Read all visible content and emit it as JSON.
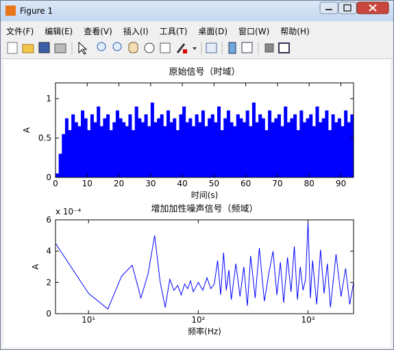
{
  "window": {
    "title": "Figure 1",
    "menu": [
      "文件(F)",
      "编辑(E)",
      "查看(V)",
      "插入(I)",
      "工具(T)",
      "桌面(D)",
      "窗口(W)",
      "帮助(H)"
    ]
  },
  "chart_data": [
    {
      "type": "bar",
      "title": "原始信号（时域）",
      "xlabel": "时间(s)",
      "ylabel": "A",
      "color": "#0000ff",
      "x": [
        0,
        1,
        2,
        3,
        4,
        5,
        6,
        7,
        8,
        9,
        10,
        11,
        12,
        13,
        14,
        15,
        16,
        17,
        18,
        19,
        20,
        21,
        22,
        23,
        24,
        25,
        26,
        27,
        28,
        29,
        30,
        31,
        32,
        33,
        34,
        35,
        36,
        37,
        38,
        39,
        40,
        41,
        42,
        43,
        44,
        45,
        46,
        47,
        48,
        49,
        50,
        51,
        52,
        53,
        54,
        55,
        56,
        57,
        58,
        59,
        60,
        61,
        62,
        63,
        64,
        65,
        66,
        67,
        68,
        69,
        70,
        71,
        72,
        73,
        74,
        75,
        76,
        77,
        78,
        79,
        80,
        81,
        82,
        83,
        84,
        85,
        86,
        87,
        88,
        89,
        90,
        91,
        92,
        93
      ],
      "values": [
        0.05,
        0.3,
        0.55,
        0.75,
        0.6,
        0.8,
        0.7,
        0.65,
        0.85,
        0.75,
        0.6,
        0.8,
        0.7,
        0.9,
        0.65,
        0.75,
        0.8,
        0.6,
        0.7,
        0.85,
        0.75,
        0.7,
        0.65,
        0.8,
        0.6,
        0.9,
        0.75,
        0.7,
        0.8,
        0.65,
        0.95,
        0.7,
        0.75,
        0.8,
        0.65,
        0.85,
        0.7,
        0.75,
        0.6,
        0.8,
        0.9,
        0.7,
        0.75,
        0.65,
        0.8,
        0.7,
        0.85,
        0.65,
        0.75,
        0.8,
        0.7,
        0.9,
        0.6,
        0.75,
        0.85,
        0.7,
        0.65,
        0.8,
        0.75,
        0.7,
        0.85,
        0.65,
        0.95,
        0.7,
        0.8,
        0.75,
        0.6,
        0.85,
        0.7,
        0.75,
        0.8,
        0.65,
        0.9,
        0.7,
        0.75,
        0.8,
        0.6,
        0.85,
        0.7,
        0.75,
        0.8,
        0.65,
        0.9,
        0.7,
        0.75,
        0.85,
        0.6,
        0.8,
        0.7,
        0.75,
        0.65,
        0.85,
        0.7,
        0.8
      ],
      "xlim": [
        0,
        94
      ],
      "ylim": [
        0,
        1.2
      ],
      "xticks": [
        0,
        10,
        20,
        30,
        40,
        50,
        60,
        70,
        80,
        90
      ],
      "yticks": [
        0,
        0.5,
        1
      ]
    },
    {
      "type": "line",
      "title": "增加加性噪声信号（频域）",
      "xlabel": "频率(Hz)",
      "ylabel": "A",
      "color": "#0000ff",
      "x_scale": "log",
      "y_exponent_label": "x 10⁻⁴",
      "x": [
        5,
        10,
        15,
        20,
        25,
        30,
        35,
        40,
        45,
        50,
        55,
        60,
        65,
        70,
        75,
        80,
        85,
        90,
        95,
        100,
        110,
        120,
        130,
        140,
        150,
        160,
        170,
        180,
        190,
        200,
        220,
        240,
        260,
        280,
        300,
        330,
        360,
        400,
        440,
        480,
        520,
        560,
        600,
        650,
        700,
        750,
        800,
        850,
        900,
        950,
        1000,
        1050,
        1100,
        1200,
        1300,
        1400,
        1500,
        1600,
        1800,
        2000,
        2200,
        2400,
        2600
      ],
      "values": [
        0.00045,
        0.00013,
        3e-05,
        0.00024,
        0.00031,
        0.0001,
        0.00026,
        0.0005,
        0.0002,
        4e-05,
        0.00022,
        0.00015,
        0.00018,
        0.00012,
        0.00019,
        0.00016,
        0.00021,
        0.00014,
        0.00017,
        0.0002,
        0.00015,
        0.00023,
        0.00016,
        0.00019,
        0.00034,
        0.00012,
        0.00039,
        0.00015,
        0.00028,
        9e-05,
        0.00032,
        0.00011,
        0.0003,
        5e-05,
        0.00037,
        0.0001,
        0.00042,
        8e-05,
        0.00026,
        0.0004,
        0.00012,
        0.00033,
        7e-05,
        0.00036,
        0.00014,
        0.00043,
        9e-05,
        0.0003,
        0.00015,
        0.00022,
        0.00059,
        0.0001,
        0.00034,
        6e-05,
        0.00041,
        0.00013,
        0.00032,
        4e-05,
        0.00038,
        0.00011,
        0.00029,
        6e-05,
        0.0002
      ],
      "xlim": [
        5,
        2600
      ],
      "ylim": [
        0,
        0.0006
      ],
      "xticks": [
        {
          "value": 10,
          "label": "10¹"
        },
        {
          "value": 100,
          "label": "10²"
        },
        {
          "value": 1000,
          "label": "10³"
        }
      ],
      "yticks": [
        {
          "value": 0,
          "label": "0"
        },
        {
          "value": 0.0002,
          "label": "2"
        },
        {
          "value": 0.0004,
          "label": "4"
        },
        {
          "value": 0.0006,
          "label": "6"
        }
      ]
    }
  ]
}
